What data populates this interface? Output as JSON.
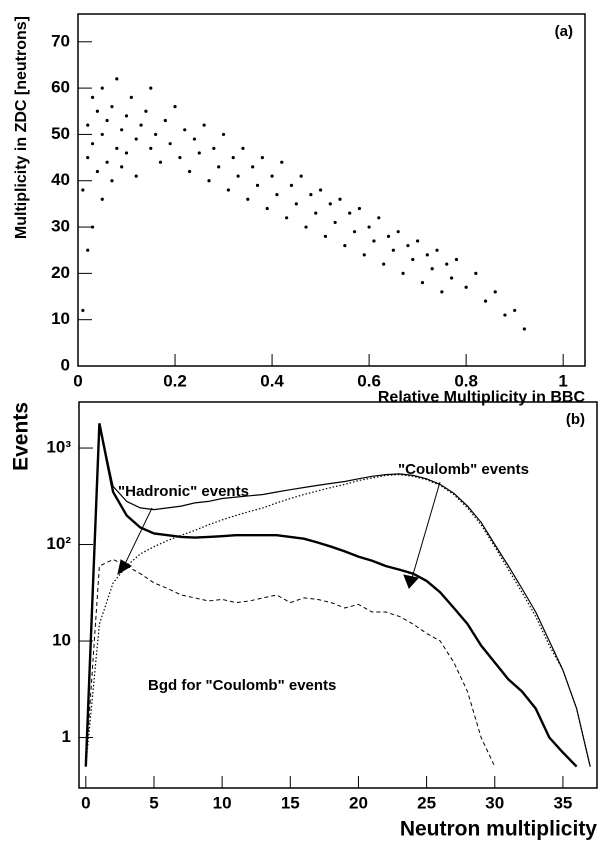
{
  "chart_data": [
    {
      "type": "scatter",
      "label": "(a)",
      "x_label": "Relative Multiplicity in BBC",
      "y_label": "Multiplicity in ZDC  [neutrons]",
      "color": "#000000",
      "xlim": [
        0,
        1.045
      ],
      "ylim": [
        0,
        76
      ],
      "xticks": [
        0,
        0.2,
        0.4,
        0.6,
        0.8,
        1
      ],
      "yticks": [
        0,
        10,
        20,
        30,
        40,
        50,
        60,
        70
      ],
      "x": [
        0.01,
        0.01,
        0.02,
        0.02,
        0.02,
        0.03,
        0.03,
        0.03,
        0.04,
        0.04,
        0.05,
        0.05,
        0.05,
        0.06,
        0.06,
        0.07,
        0.07,
        0.08,
        0.08,
        0.09,
        0.09,
        0.1,
        0.1,
        0.11,
        0.12,
        0.12,
        0.13,
        0.14,
        0.15,
        0.15,
        0.16,
        0.17,
        0.18,
        0.19,
        0.2,
        0.21,
        0.22,
        0.23,
        0.24,
        0.25,
        0.26,
        0.27,
        0.28,
        0.29,
        0.3,
        0.31,
        0.32,
        0.33,
        0.34,
        0.35,
        0.36,
        0.37,
        0.38,
        0.39,
        0.4,
        0.41,
        0.42,
        0.43,
        0.44,
        0.45,
        0.46,
        0.47,
        0.48,
        0.49,
        0.5,
        0.51,
        0.52,
        0.53,
        0.54,
        0.55,
        0.56,
        0.57,
        0.58,
        0.59,
        0.6,
        0.61,
        0.62,
        0.63,
        0.64,
        0.65,
        0.66,
        0.67,
        0.68,
        0.69,
        0.7,
        0.71,
        0.72,
        0.73,
        0.74,
        0.75,
        0.76,
        0.77,
        0.78,
        0.8,
        0.82,
        0.84,
        0.86,
        0.88,
        0.9,
        0.92
      ],
      "y": [
        12,
        38,
        25,
        45,
        52,
        30,
        48,
        58,
        42,
        55,
        36,
        50,
        60,
        44,
        53,
        40,
        56,
        47,
        62,
        51,
        43,
        54,
        46,
        58,
        49,
        41,
        52,
        55,
        47,
        60,
        50,
        44,
        53,
        48,
        56,
        45,
        51,
        42,
        49,
        46,
        52,
        40,
        47,
        43,
        50,
        38,
        45,
        41,
        47,
        36,
        43,
        39,
        45,
        34,
        41,
        37,
        44,
        32,
        39,
        35,
        41,
        30,
        37,
        33,
        38,
        28,
        35,
        31,
        36,
        26,
        33,
        29,
        34,
        24,
        30,
        27,
        32,
        22,
        28,
        25,
        29,
        20,
        26,
        23,
        27,
        18,
        24,
        21,
        25,
        16,
        22,
        19,
        23,
        17,
        20,
        14,
        16,
        11,
        12,
        8
      ]
    },
    {
      "type": "line",
      "label": "(b)",
      "x_label": "Neutron multiplicity",
      "y_label": "Events",
      "log_y": true,
      "xlim": [
        -0.5,
        37.5
      ],
      "ylim": [
        0.3,
        3000
      ],
      "xticks": [
        0,
        5,
        10,
        15,
        20,
        25,
        30,
        35
      ],
      "yticks": [
        1,
        10,
        {
          "value": 100,
          "label": "10²"
        },
        {
          "value": 1000,
          "label": "10³"
        }
      ],
      "annotations": [
        "\"Hadronic\" events",
        "\"Coulomb\" events",
        "Bgd for \"Coulomb\"  events"
      ],
      "x": [
        0,
        1,
        2,
        3,
        4,
        5,
        6,
        7,
        8,
        9,
        10,
        11,
        12,
        13,
        14,
        15,
        16,
        17,
        18,
        19,
        20,
        21,
        22,
        23,
        24,
        25,
        26,
        27,
        28,
        29,
        30,
        31,
        32,
        33,
        34,
        35,
        36,
        37
      ],
      "series": [
        {
          "color": "#000000",
          "style": "thin",
          "values": [
            0.5,
            1800,
            400,
            280,
            240,
            230,
            240,
            250,
            270,
            280,
            300,
            310,
            320,
            330,
            350,
            370,
            390,
            410,
            430,
            450,
            480,
            510,
            530,
            540,
            520,
            480,
            420,
            340,
            250,
            170,
            100,
            60,
            35,
            20,
            10,
            5,
            2,
            0.5
          ]
        },
        {
          "color": "#000000",
          "style": "dotted",
          "values": [
            0.5,
            15,
            40,
            60,
            80,
            95,
            110,
            125,
            140,
            160,
            180,
            200,
            220,
            240,
            270,
            300,
            330,
            360,
            390,
            420,
            460,
            490,
            520,
            530,
            510,
            470,
            410,
            330,
            240,
            160,
            95,
            55,
            32,
            18,
            9,
            5,
            2,
            0.5
          ]
        },
        {
          "color": "#000000",
          "style": "thick",
          "values": [
            0.5,
            1800,
            350,
            200,
            150,
            130,
            125,
            120,
            118,
            120,
            122,
            125,
            125,
            125,
            125,
            120,
            115,
            105,
            95,
            85,
            75,
            68,
            60,
            55,
            50,
            42,
            32,
            22,
            15,
            9,
            6,
            4,
            3,
            2,
            1,
            0.7,
            0.5,
            null
          ]
        },
        {
          "color": "#000000",
          "style": "dashed",
          "values": [
            0.5,
            60,
            70,
            60,
            50,
            40,
            35,
            30,
            28,
            26,
            27,
            25,
            26,
            28,
            30,
            25,
            28,
            27,
            25,
            22,
            24,
            20,
            20,
            18,
            15,
            12,
            10,
            6,
            3,
            1,
            0.5,
            null,
            null,
            null,
            null,
            null,
            null,
            null
          ]
        }
      ]
    }
  ]
}
